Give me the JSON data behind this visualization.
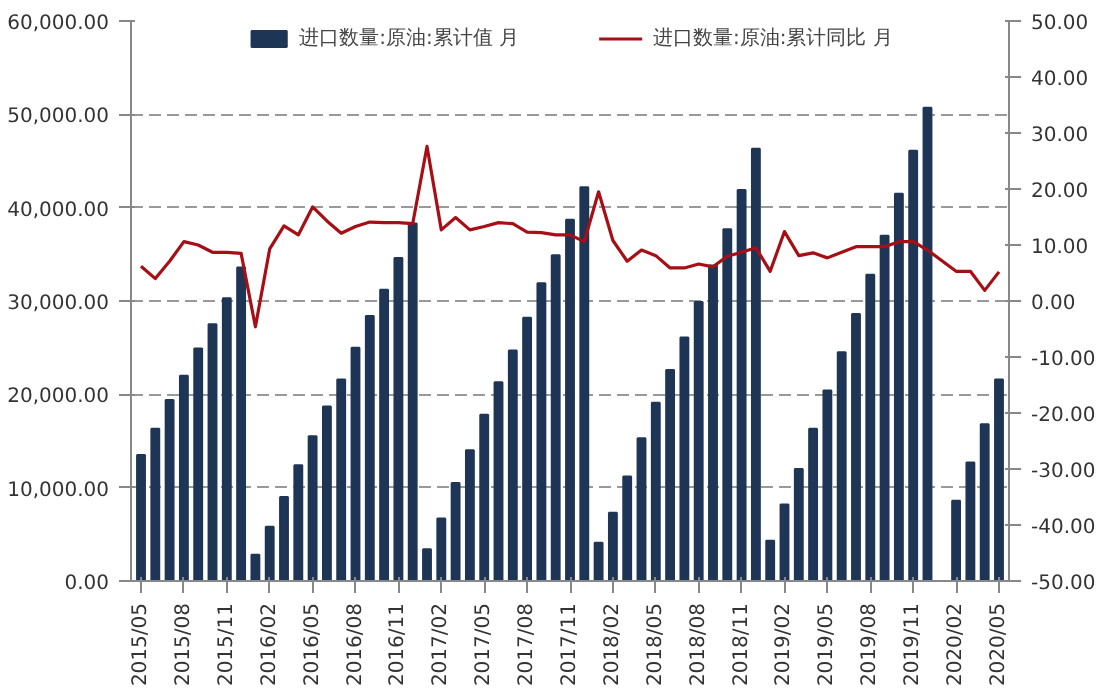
{
  "chart_data": {
    "type": "bar",
    "categories": [
      "2015/05",
      null,
      null,
      "2015/08",
      null,
      null,
      "2015/11",
      null,
      null,
      "2016/02",
      null,
      null,
      "2016/05",
      null,
      null,
      "2016/08",
      null,
      null,
      "2016/11",
      null,
      null,
      "2017/02",
      null,
      null,
      "2017/05",
      null,
      null,
      "2017/08",
      null,
      null,
      "2017/11",
      null,
      null,
      "2018/02",
      null,
      null,
      "2018/05",
      null,
      null,
      "2018/08",
      null,
      null,
      "2018/11",
      null,
      null,
      "2019/02",
      null,
      null,
      "2019/05",
      null,
      null,
      "2019/08",
      null,
      null,
      "2019/11",
      null,
      null,
      "2020/02",
      null,
      null,
      "2020/05"
    ],
    "series": [
      {
        "name": "进口数量:原油:累计值 月",
        "color": "#1f3556",
        "values": [
          13500,
          16300,
          19400,
          22000,
          24900,
          27500,
          30300,
          33600,
          2800,
          5800,
          9000,
          12400,
          15500,
          18700,
          21600,
          25000,
          28400,
          31200,
          34600,
          38300,
          3400,
          6700,
          10500,
          14000,
          17800,
          21300,
          24700,
          28200,
          31900,
          34900,
          38700,
          42200,
          4100,
          7300,
          11200,
          15300,
          19100,
          22600,
          26100,
          29900,
          33800,
          37700,
          41900,
          46300,
          4300,
          8200,
          12000,
          16300,
          20400,
          24500,
          28600,
          32800,
          37000,
          41500,
          46100,
          50700,
          null,
          8600,
          12700,
          16800,
          21600
        ]
      },
      {
        "name": "进口数量:原油:累计同比 月",
        "type": "line",
        "axis": "y2",
        "color": "#a50f15",
        "values": [
          6.2,
          4.0,
          7.1,
          10.6,
          10.0,
          8.7,
          8.7,
          8.5,
          -4.6,
          9.3,
          13.4,
          11.8,
          16.8,
          14.3,
          12.1,
          13.3,
          14.1,
          14.0,
          14.0,
          13.8,
          27.6,
          12.7,
          14.9,
          12.7,
          13.3,
          14.0,
          13.8,
          12.3,
          12.2,
          11.8,
          11.8,
          10.6,
          19.5,
          10.8,
          7.1,
          9.1,
          8.1,
          5.9,
          5.9,
          6.6,
          6.1,
          8.0,
          8.7,
          9.5,
          5.3,
          12.4,
          8.1,
          8.6,
          7.7,
          8.7,
          9.7,
          9.7,
          9.7,
          10.6,
          10.6,
          9.1,
          null,
          5.3,
          5.3,
          1.9,
          5.2
        ]
      }
    ],
    "ylim": [
      0,
      60000
    ],
    "yticks": [
      {
        "value": 0,
        "label": "0.00"
      },
      {
        "value": 10000,
        "label": "10,000.00"
      },
      {
        "value": 20000,
        "label": "20,000.00"
      },
      {
        "value": 30000,
        "label": "30,000.00"
      },
      {
        "value": 40000,
        "label": "40,000.00"
      },
      {
        "value": 50000,
        "label": "50,000.00"
      },
      {
        "value": 60000,
        "label": "60,000.00"
      }
    ],
    "y2lim": [
      -50,
      50
    ],
    "y2ticks": [
      {
        "value": -50,
        "label": "-50.00"
      },
      {
        "value": -40,
        "label": "-40.00"
      },
      {
        "value": -30,
        "label": "-30.00"
      },
      {
        "value": -20,
        "label": "-20.00"
      },
      {
        "value": -10,
        "label": "-10.00"
      },
      {
        "value": 0,
        "label": "0.00"
      },
      {
        "value": 10,
        "label": "10.00"
      },
      {
        "value": 20,
        "label": "20.00"
      },
      {
        "value": 30,
        "label": "30.00"
      },
      {
        "value": 40,
        "label": "40.00"
      },
      {
        "value": 50,
        "label": "50.00"
      }
    ],
    "grid": "y",
    "legend": "top"
  }
}
